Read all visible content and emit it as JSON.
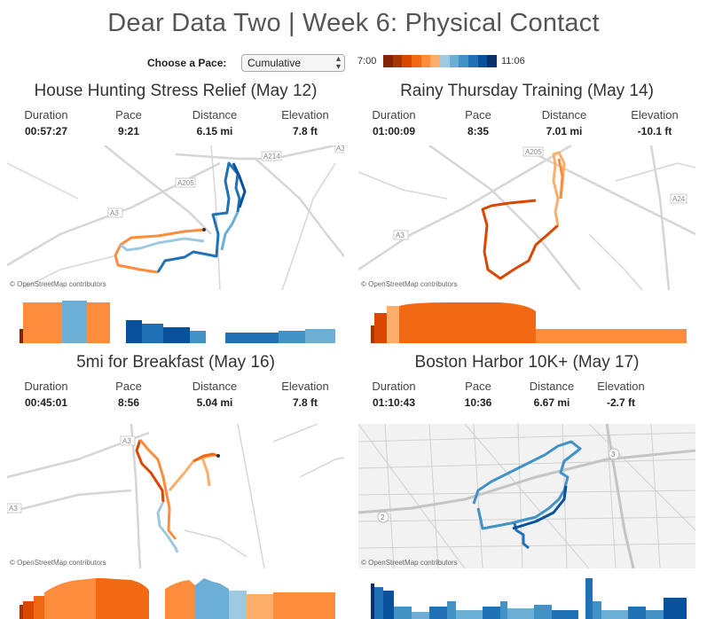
{
  "header": {
    "title": "Dear Data Two  |  Week 6: Physical Contact"
  },
  "controls": {
    "pace_label": "Choose a Pace:",
    "pace_selected": "Cumulative",
    "legend_min": "7:00",
    "legend_max": "11:06",
    "legend_colors": [
      "#7f2704",
      "#a63603",
      "#d94801",
      "#f16913",
      "#fd8d3c",
      "#fdae6b",
      "#9ecae1",
      "#6baed6",
      "#4292c6",
      "#2171b5",
      "#08519c",
      "#08306b"
    ]
  },
  "labels": {
    "duration": "Duration",
    "pace": "Pace",
    "distance": "Distance",
    "elevation": "Elevation"
  },
  "attribution": "© OpenStreetMap contributors",
  "runs": [
    {
      "title": "House Hunting Stress Relief (May 12)",
      "duration": "00:57:27",
      "pace": "9:21",
      "distance": "6.15 mi",
      "elevation": "7.8 ft",
      "roads": [
        "A205",
        "A214",
        "A3",
        "A3"
      ]
    },
    {
      "title": "Rainy Thursday Training (May 14)",
      "duration": "01:00:09",
      "pace": "8:35",
      "distance": "7.01 mi",
      "elevation": "-10.1 ft",
      "roads": [
        "A205",
        "A24",
        "A3"
      ]
    },
    {
      "title": "5mi for Breakfast (May 16)",
      "duration": "00:45:01",
      "pace": "8:56",
      "distance": "5.04 mi",
      "elevation": "7.8 ft",
      "roads": [
        "A3",
        "A3"
      ]
    },
    {
      "title": "Boston Harbor 10K+ (May 17)",
      "duration": "01:10:43",
      "pace": "10:36",
      "distance": "6.67 mi",
      "elevation": "-2.7 ft",
      "roads": [
        "3",
        "2"
      ]
    }
  ]
}
